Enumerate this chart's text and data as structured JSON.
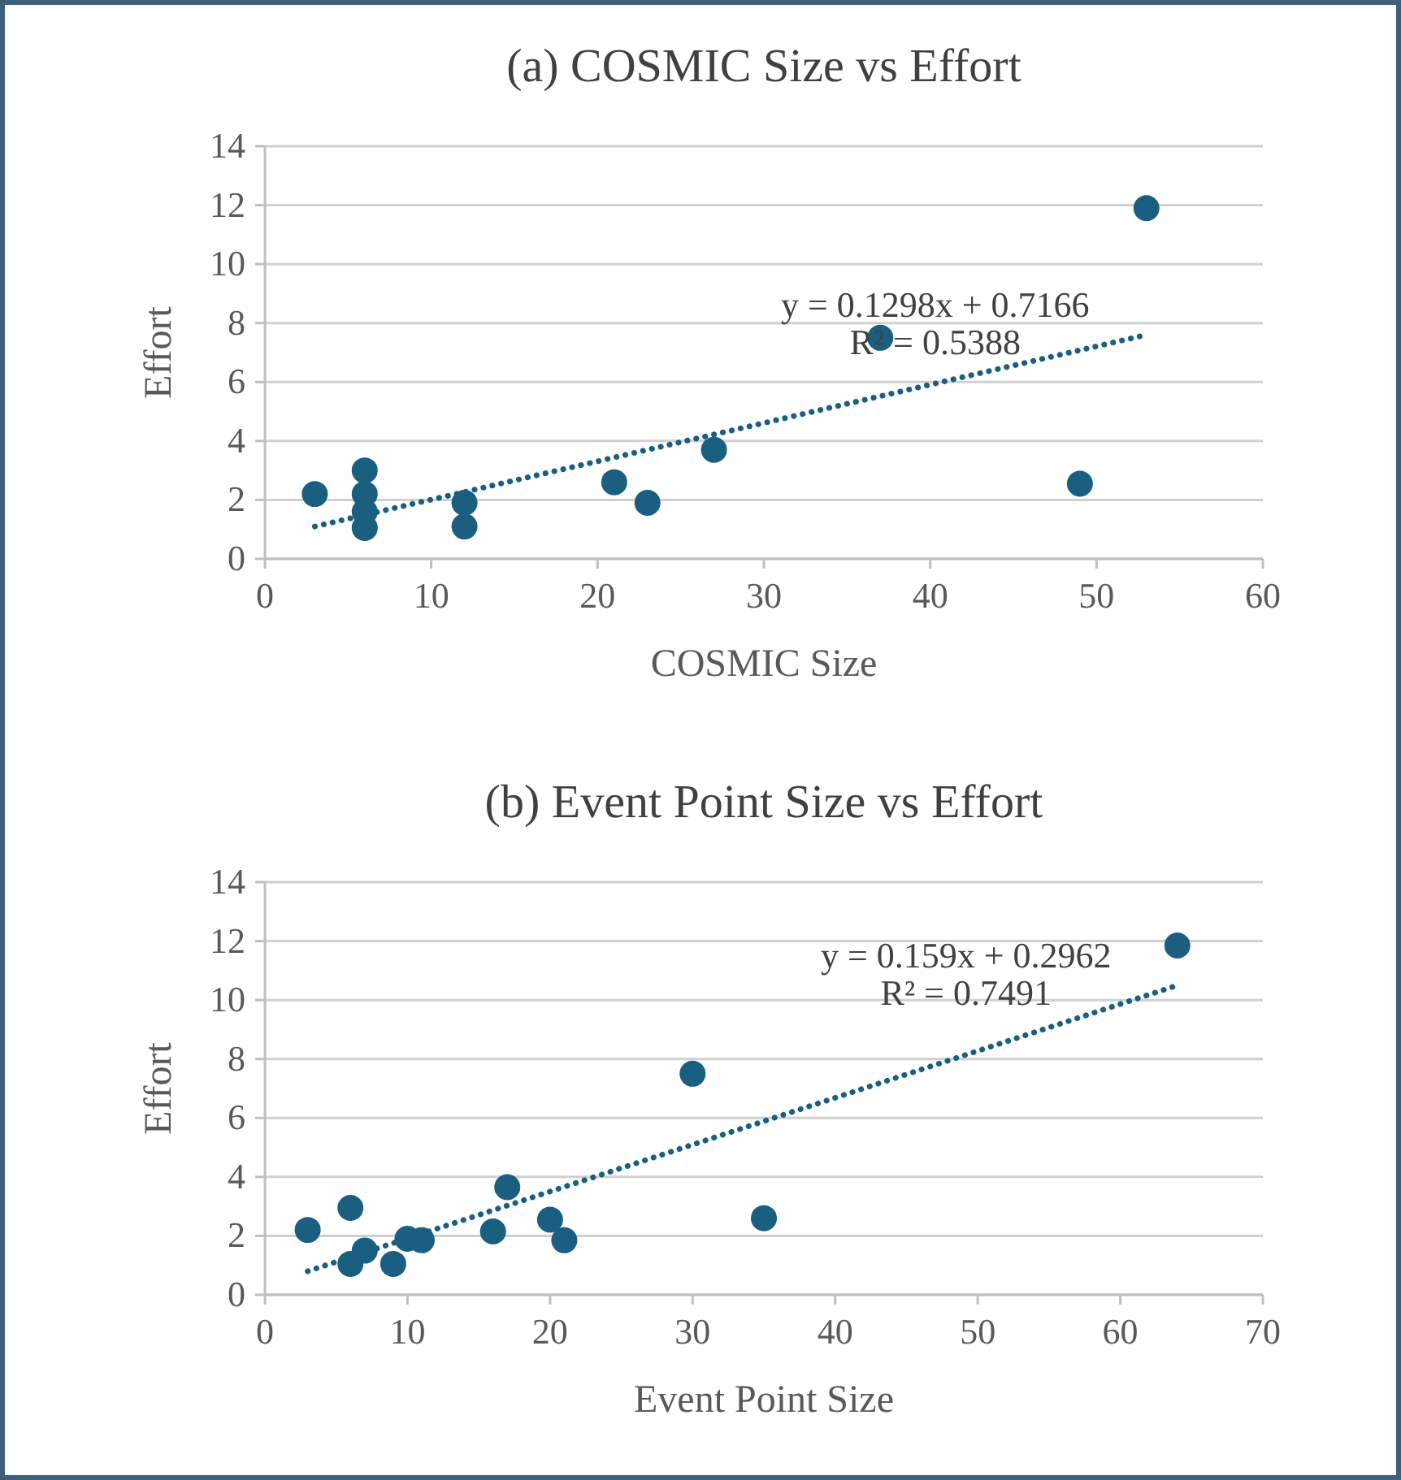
{
  "chart_data": [
    {
      "type": "scatter",
      "title": "(a) COSMIC Size vs Effort",
      "xlabel": "COSMIC Size",
      "ylabel": "Effort",
      "xlim": [
        0,
        60
      ],
      "xticks": [
        0,
        10,
        20,
        30,
        40,
        50,
        60
      ],
      "ylim": [
        0,
        14
      ],
      "yticks": [
        0,
        2,
        4,
        6,
        8,
        10,
        12,
        14
      ],
      "grid": "y",
      "series": [
        {
          "color": "#1a5e80",
          "marker": "circle",
          "x": [
            3,
            6,
            6,
            6,
            6,
            12,
            12,
            21,
            23,
            27,
            37,
            49,
            53
          ],
          "values": [
            2.2,
            3.0,
            2.2,
            1.6,
            1.05,
            1.9,
            1.1,
            2.6,
            1.9,
            3.7,
            7.5,
            2.55,
            11.9
          ]
        },
        {
          "type": "line",
          "line_style": "dotted",
          "color": "#1a5e80",
          "x": [
            3,
            53
          ],
          "values": [
            1.1,
            7.6
          ]
        }
      ],
      "annotations": [
        "y = 0.1298x + 0.7166",
        "R² = 0.5388"
      ]
    },
    {
      "type": "scatter",
      "title": "(b) Event Point Size vs Effort",
      "xlabel": "Event Point Size",
      "ylabel": "Effort",
      "xlim": [
        0,
        70
      ],
      "xticks": [
        0,
        10,
        20,
        30,
        40,
        50,
        60,
        70
      ],
      "ylim": [
        0,
        14
      ],
      "yticks": [
        0,
        2,
        4,
        6,
        8,
        10,
        12,
        14
      ],
      "grid": "y",
      "series": [
        {
          "color": "#1a5e80",
          "marker": "circle",
          "x": [
            3,
            6,
            6,
            7,
            9,
            10,
            11,
            16,
            17,
            20,
            21,
            30,
            35,
            64
          ],
          "values": [
            2.2,
            2.95,
            1.05,
            1.5,
            1.05,
            1.9,
            1.85,
            2.15,
            3.65,
            2.55,
            1.85,
            7.5,
            2.6,
            11.85
          ]
        },
        {
          "type": "line",
          "line_style": "dotted",
          "color": "#1a5e80",
          "x": [
            3,
            64
          ],
          "values": [
            0.8,
            10.5
          ]
        }
      ],
      "annotations": [
        "y = 0.159x + 0.2962",
        "R² = 0.7491"
      ]
    }
  ]
}
